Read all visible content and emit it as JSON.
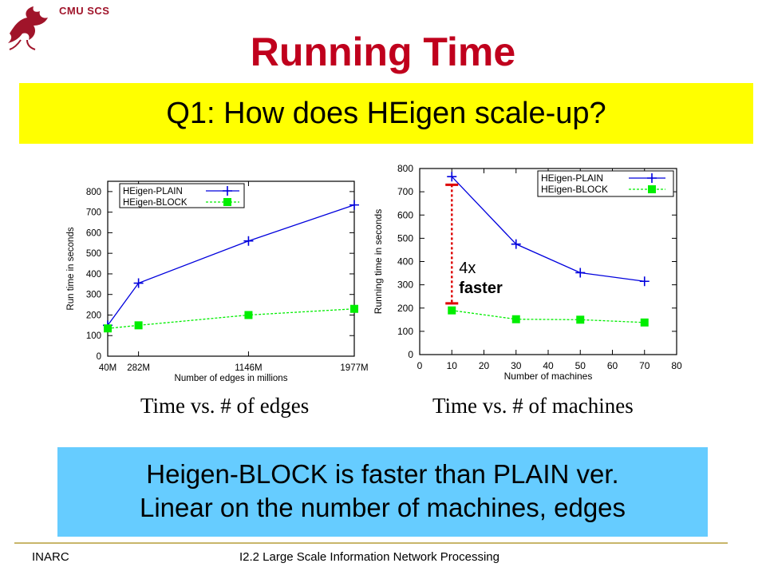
{
  "header": {
    "brand": "CMU SCS",
    "logo_icon": "dragon-logo-icon"
  },
  "slide_title": "Running Time",
  "question": "Q1: How does HEigen scale-up?",
  "colors": {
    "title": "#c0001d",
    "question_bg": "#ffff00",
    "conclusion_bg": "#66ccff",
    "plain": "#0000dd",
    "block": "#00ee00",
    "speedup_marker": "#dd0000"
  },
  "charts": {
    "left": {
      "caption": "Time vs. # of edges"
    },
    "right": {
      "caption": "Time vs. # of machines",
      "annotation_line1": "4x",
      "annotation_line2": "faster"
    }
  },
  "chart_data": [
    {
      "type": "line",
      "title": "",
      "xlabel": "Number of edges in millions",
      "ylabel": "Run time in seconds",
      "x_tick_labels": [
        "40M",
        "282M",
        "1146M",
        "1977M"
      ],
      "x": [
        40,
        282,
        1146,
        1977
      ],
      "xlim": [
        40,
        1977
      ],
      "ylim": [
        0,
        850
      ],
      "yticks": [
        0,
        100,
        200,
        300,
        400,
        500,
        600,
        700,
        800
      ],
      "legend": "top-left",
      "grid": false,
      "series": [
        {
          "name": "HEigen-PLAIN",
          "values": [
            150,
            355,
            560,
            735
          ]
        },
        {
          "name": "HEigen-BLOCK",
          "values": [
            135,
            150,
            200,
            230
          ]
        }
      ]
    },
    {
      "type": "line",
      "title": "",
      "xlabel": "Number of machines",
      "ylabel": "Running time in seconds",
      "x": [
        10,
        30,
        50,
        70
      ],
      "xlim": [
        0,
        80
      ],
      "xticks": [
        0,
        10,
        20,
        30,
        40,
        50,
        60,
        70,
        80
      ],
      "ylim": [
        0,
        800
      ],
      "yticks": [
        0,
        100,
        200,
        300,
        400,
        500,
        600,
        700,
        800
      ],
      "legend": "top-right",
      "grid": false,
      "series": [
        {
          "name": "HEigen-PLAIN",
          "values": [
            765,
            475,
            352,
            315
          ]
        },
        {
          "name": "HEigen-BLOCK",
          "values": [
            190,
            152,
            150,
            138
          ]
        }
      ],
      "annotations": [
        {
          "text": "4x faster",
          "x": 10,
          "y_from": 220,
          "y_to": 730
        }
      ]
    }
  ],
  "conclusion": {
    "line1": "Heigen-BLOCK is faster than PLAIN ver.",
    "line2": "Linear on the number of machines, edges"
  },
  "footer": {
    "left": "INARC",
    "center": "I2.2 Large Scale Information Network Processing"
  }
}
